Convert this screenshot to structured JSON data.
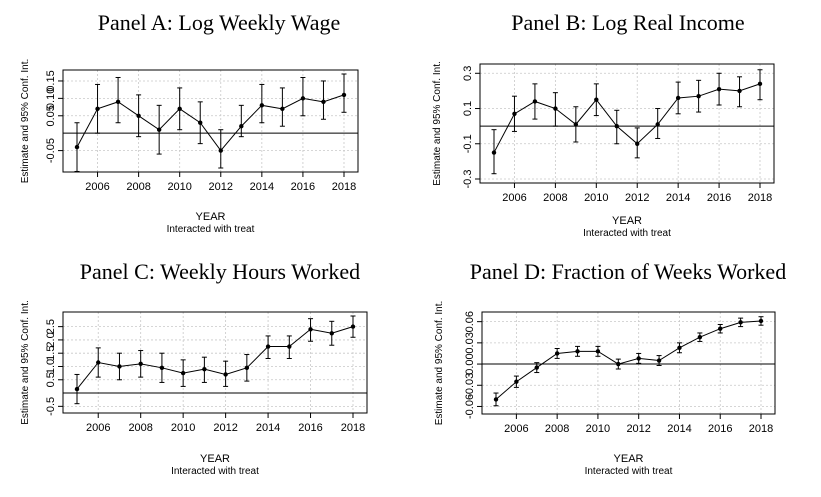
{
  "chart_data": [
    {
      "type": "line",
      "title": "Panel A: Log Weekly Wage",
      "xlabel": "YEAR",
      "subtitle": "Interacted with treat",
      "ylabel": "Estimate and 95% Conf. Int.",
      "x": [
        2005,
        2006,
        2007,
        2008,
        2009,
        2010,
        2011,
        2012,
        2013,
        2014,
        2015,
        2016,
        2017,
        2018
      ],
      "xticks": [
        2006,
        2008,
        2010,
        2012,
        2014,
        2016,
        2018
      ],
      "xlim": [
        2005,
        2018
      ],
      "yticks": [
        -0.05,
        0.05,
        0.1,
        0.15
      ],
      "ytick_labels": [
        "-0.05",
        "0.05",
        "0.10",
        "0.15"
      ],
      "ylim": [
        -0.1,
        0.17
      ],
      "reference_line": 0,
      "series": [
        {
          "values": [
            -0.04,
            0.07,
            0.09,
            0.05,
            0.01,
            0.07,
            0.03,
            -0.05,
            0.02,
            0.08,
            0.07,
            0.1,
            0.09,
            0.11
          ],
          "lower": [
            -0.11,
            0.0,
            0.03,
            -0.01,
            -0.06,
            0.01,
            -0.03,
            -0.1,
            -0.01,
            0.03,
            0.02,
            0.05,
            0.04,
            0.06
          ],
          "upper": [
            0.03,
            0.14,
            0.16,
            0.11,
            0.08,
            0.13,
            0.09,
            0.01,
            0.08,
            0.14,
            0.13,
            0.16,
            0.15,
            0.17
          ]
        }
      ],
      "grid": true
    },
    {
      "type": "line",
      "title": "Panel B: Log Real Income",
      "xlabel": "YEAR",
      "subtitle": "Interacted with treat",
      "ylabel": "Estimate and 95% Conf. Int.",
      "x": [
        2005,
        2006,
        2007,
        2008,
        2009,
        2010,
        2011,
        2012,
        2013,
        2014,
        2015,
        2016,
        2017,
        2018
      ],
      "xticks": [
        2006,
        2008,
        2010,
        2012,
        2014,
        2016,
        2018
      ],
      "xlim": [
        2005,
        2018
      ],
      "yticks": [
        -0.3,
        -0.1,
        0.1,
        0.3
      ],
      "ytick_labels": [
        "-0.3",
        "-0.1",
        "0.1",
        "0.3"
      ],
      "ylim": [
        -0.3,
        0.33
      ],
      "reference_line": 0,
      "series": [
        {
          "values": [
            -0.15,
            0.07,
            0.14,
            0.1,
            0.01,
            0.15,
            0.0,
            -0.1,
            0.01,
            0.16,
            0.17,
            0.21,
            0.2,
            0.24
          ],
          "lower": [
            -0.27,
            -0.03,
            0.04,
            0.0,
            -0.09,
            0.06,
            -0.1,
            -0.18,
            -0.07,
            0.07,
            0.08,
            0.12,
            0.11,
            0.15
          ],
          "upper": [
            -0.02,
            0.17,
            0.24,
            0.19,
            0.11,
            0.24,
            0.09,
            -0.01,
            0.1,
            0.25,
            0.26,
            0.3,
            0.28,
            0.32
          ]
        }
      ],
      "grid": true
    },
    {
      "type": "line",
      "title": "Panel C: Weekly Hours Worked",
      "xlabel": "YEAR",
      "subtitle": "Interacted with treat",
      "ylabel": "Estimate and 95% Conf. Int.",
      "x": [
        2005,
        2006,
        2007,
        2008,
        2009,
        2010,
        2011,
        2012,
        2013,
        2014,
        2015,
        2016,
        2017,
        2018
      ],
      "xticks": [
        2006,
        2008,
        2010,
        2012,
        2014,
        2016,
        2018
      ],
      "xlim": [
        2005,
        2018
      ],
      "yticks": [
        -0.5,
        0.5,
        1.0,
        1.5,
        2.0,
        2.5
      ],
      "ytick_labels": [
        "-0.5",
        "0.5",
        "1.0",
        "1.5",
        "2.0",
        "2.5"
      ],
      "ylim": [
        -0.6,
        2.9
      ],
      "reference_line": 0,
      "series": [
        {
          "values": [
            0.15,
            1.15,
            1.0,
            1.1,
            0.95,
            0.75,
            0.9,
            0.7,
            0.95,
            1.75,
            1.75,
            2.4,
            2.25,
            2.5
          ],
          "lower": [
            -0.4,
            0.6,
            0.5,
            0.6,
            0.4,
            0.25,
            0.4,
            0.25,
            0.45,
            1.3,
            1.3,
            1.95,
            1.8,
            2.1
          ],
          "upper": [
            0.7,
            1.7,
            1.5,
            1.6,
            1.5,
            1.25,
            1.35,
            1.2,
            1.45,
            2.15,
            2.15,
            2.8,
            2.7,
            2.9
          ]
        }
      ],
      "grid": true
    },
    {
      "type": "line",
      "title": "Panel D: Fraction of Weeks Worked",
      "xlabel": "YEAR",
      "subtitle": "Interacted with treat",
      "ylabel": "Estimate and 95% Conf. Int.",
      "x": [
        2005,
        2006,
        2007,
        2008,
        2009,
        2010,
        2011,
        2012,
        2013,
        2014,
        2015,
        2016,
        2017,
        2018
      ],
      "xticks": [
        2006,
        2008,
        2010,
        2012,
        2014,
        2016,
        2018
      ],
      "xlim": [
        2005,
        2018
      ],
      "yticks": [
        -0.06,
        -0.03,
        0.0,
        0.03,
        0.06
      ],
      "ytick_labels": [
        "-0.06",
        "-0.03",
        "0.00",
        "0.03",
        "0.06"
      ],
      "ylim": [
        -0.065,
        0.068
      ],
      "reference_line": 0,
      "series": [
        {
          "values": [
            -0.05,
            -0.025,
            -0.005,
            0.015,
            0.018,
            0.018,
            0.0,
            0.008,
            0.005,
            0.023,
            0.038,
            0.05,
            0.059,
            0.061
          ],
          "lower": [
            -0.059,
            -0.033,
            -0.012,
            0.008,
            0.011,
            0.011,
            -0.007,
            0.001,
            -0.002,
            0.016,
            0.032,
            0.044,
            0.053,
            0.055
          ],
          "upper": [
            -0.041,
            -0.017,
            0.002,
            0.022,
            0.025,
            0.025,
            0.007,
            0.015,
            0.012,
            0.03,
            0.044,
            0.056,
            0.065,
            0.067
          ]
        }
      ],
      "grid": true
    }
  ]
}
